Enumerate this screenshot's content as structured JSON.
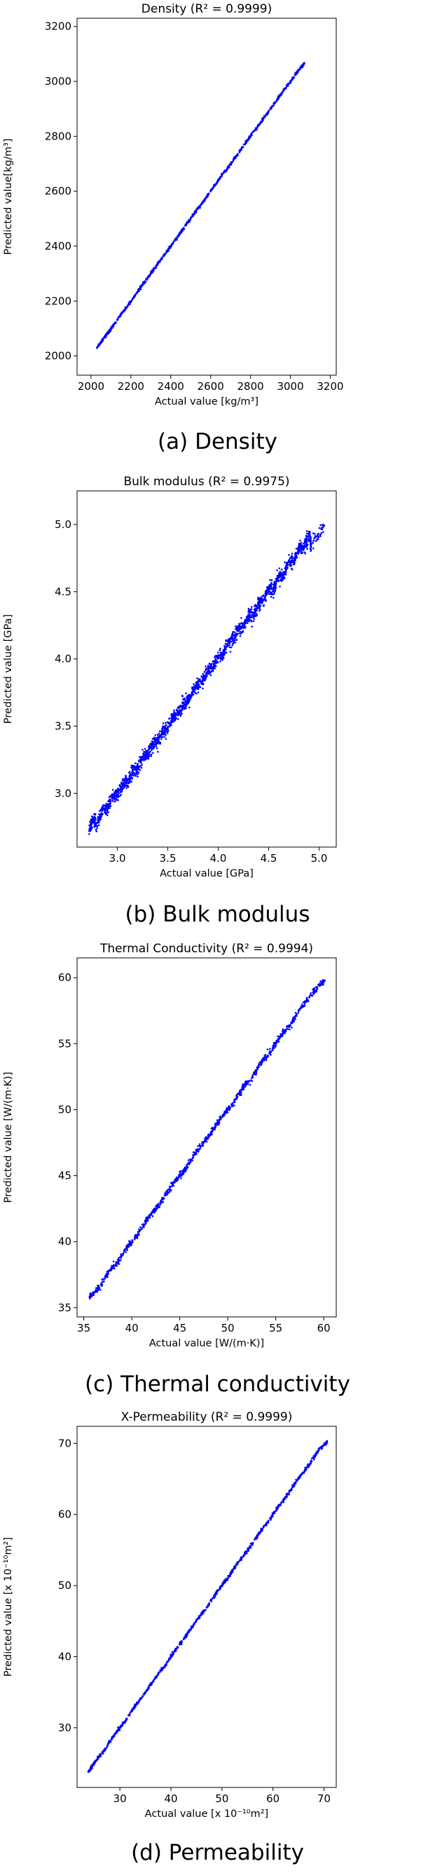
{
  "panels": [
    {
      "caption": "(a) Density",
      "chart_data": {
        "type": "scatter",
        "title": "Density (R² = 0.9999)",
        "xlabel": "Actual value [kg/m³]",
        "ylabel": "Predicted value[kg/m³]",
        "xlim": [
          1930,
          3230
        ],
        "ylim": [
          1930,
          3230
        ],
        "xticks": [
          2000,
          2200,
          2400,
          2600,
          2800,
          3000,
          3200
        ],
        "yticks": [
          2000,
          2200,
          2400,
          2600,
          2800,
          3000,
          3200
        ],
        "xtick_labels": [
          "2000",
          "2200",
          "2400",
          "2600",
          "2800",
          "3000",
          "3200"
        ],
        "ytick_labels": [
          "2000",
          "2200",
          "2400",
          "2600",
          "2800",
          "3000",
          "3200"
        ],
        "point_color": "#0000ff",
        "grid": false,
        "points": [
          [
            2030,
            2030
          ],
          [
            2060,
            2061
          ],
          [
            2100,
            2098
          ],
          [
            2150,
            2151
          ],
          [
            2200,
            2199
          ],
          [
            2250,
            2251
          ],
          [
            2300,
            2300
          ],
          [
            2350,
            2351
          ],
          [
            2400,
            2399
          ],
          [
            2450,
            2450
          ],
          [
            2500,
            2501
          ],
          [
            2550,
            2549
          ],
          [
            2600,
            2600
          ],
          [
            2650,
            2651
          ],
          [
            2700,
            2699
          ],
          [
            2750,
            2750
          ],
          [
            2800,
            2801
          ],
          [
            2850,
            2849
          ],
          [
            2900,
            2900
          ],
          [
            2950,
            2951
          ],
          [
            3000,
            2999
          ],
          [
            3040,
            3040
          ],
          [
            3070,
            3066
          ]
        ]
      }
    },
    {
      "caption": "(b) Bulk modulus",
      "chart_data": {
        "type": "scatter",
        "title": "Bulk modulus (R² = 0.9975)",
        "xlabel": "Actual value [GPa]",
        "ylabel": "Predicted value [GPa]",
        "xlim": [
          2.6,
          5.17
        ],
        "ylim": [
          2.6,
          5.25
        ],
        "xticks": [
          3.0,
          3.5,
          4.0,
          4.5,
          5.0
        ],
        "yticks": [
          3.0,
          3.5,
          4.0,
          4.5,
          5.0
        ],
        "xtick_labels": [
          "3.0",
          "3.5",
          "4.0",
          "4.5",
          "5.0"
        ],
        "ytick_labels": [
          "3.0",
          "3.5",
          "4.0",
          "4.5",
          "5.0"
        ],
        "point_color": "#0000ff",
        "grid": false,
        "points": [
          [
            2.72,
            2.72
          ],
          [
            2.75,
            2.8
          ],
          [
            2.8,
            2.78
          ],
          [
            2.85,
            2.87
          ],
          [
            2.9,
            2.88
          ],
          [
            2.95,
            2.97
          ],
          [
            3.0,
            2.99
          ],
          [
            3.05,
            3.06
          ],
          [
            3.1,
            3.08
          ],
          [
            3.15,
            3.17
          ],
          [
            3.2,
            3.18
          ],
          [
            3.25,
            3.27
          ],
          [
            3.3,
            3.28
          ],
          [
            3.35,
            3.37
          ],
          [
            3.4,
            3.39
          ],
          [
            3.45,
            3.46
          ],
          [
            3.5,
            3.49
          ],
          [
            3.55,
            3.56
          ],
          [
            3.6,
            3.59
          ],
          [
            3.65,
            3.67
          ],
          [
            3.7,
            3.68
          ],
          [
            3.75,
            3.76
          ],
          [
            3.8,
            3.81
          ],
          [
            3.85,
            3.84
          ],
          [
            3.9,
            3.92
          ],
          [
            3.95,
            3.94
          ],
          [
            4.0,
            4.02
          ],
          [
            4.05,
            4.03
          ],
          [
            4.1,
            4.12
          ],
          [
            4.15,
            4.14
          ],
          [
            4.2,
            4.22
          ],
          [
            4.25,
            4.23
          ],
          [
            4.3,
            4.33
          ],
          [
            4.35,
            4.32
          ],
          [
            4.4,
            4.42
          ],
          [
            4.45,
            4.44
          ],
          [
            4.5,
            4.53
          ],
          [
            4.55,
            4.52
          ],
          [
            4.6,
            4.62
          ],
          [
            4.65,
            4.63
          ],
          [
            4.7,
            4.73
          ],
          [
            4.75,
            4.72
          ],
          [
            4.8,
            4.83
          ],
          [
            4.85,
            4.82
          ],
          [
            4.9,
            4.93
          ],
          [
            4.92,
            4.85
          ],
          [
            5.05,
            4.99
          ]
        ]
      }
    },
    {
      "caption": "(c) Thermal conductivity",
      "chart_data": {
        "type": "scatter",
        "title": "Thermal Conductivity (R² = 0.9994)",
        "xlabel": "Actual value [W/(m·K)]",
        "ylabel": "Predicted value [W/(m·K)]",
        "xlim": [
          34.3,
          61.3
        ],
        "ylim": [
          34.3,
          61.5
        ],
        "xticks": [
          35,
          40,
          45,
          50,
          55,
          60
        ],
        "yticks": [
          35,
          40,
          45,
          50,
          55,
          60
        ],
        "xtick_labels": [
          "35",
          "40",
          "45",
          "50",
          "55",
          "60"
        ],
        "ytick_labels": [
          "35",
          "40",
          "45",
          "50",
          "55",
          "60"
        ],
        "point_color": "#0000ff",
        "grid": false,
        "points": [
          [
            35.6,
            35.8
          ],
          [
            36.5,
            36.4
          ],
          [
            37.5,
            37.6
          ],
          [
            38.5,
            38.4
          ],
          [
            39.5,
            39.6
          ],
          [
            40.5,
            40.4
          ],
          [
            41.5,
            41.6
          ],
          [
            42.5,
            42.5
          ],
          [
            43.5,
            43.5
          ],
          [
            44.5,
            44.6
          ],
          [
            45.5,
            45.4
          ],
          [
            46.5,
            46.6
          ],
          [
            47.5,
            47.5
          ],
          [
            48.5,
            48.5
          ],
          [
            49.5,
            49.6
          ],
          [
            50.5,
            50.4
          ],
          [
            51.5,
            51.6
          ],
          [
            52.5,
            52.4
          ],
          [
            53.5,
            53.6
          ],
          [
            54.5,
            54.4
          ],
          [
            55.5,
            55.6
          ],
          [
            56.5,
            56.4
          ],
          [
            57.5,
            57.6
          ],
          [
            59.0,
            59.0
          ],
          [
            60.1,
            59.8
          ]
        ]
      }
    },
    {
      "caption": "(d) Permeability",
      "chart_data": {
        "type": "scatter",
        "title": "X-Permeability (R² = 0.9999)",
        "xlabel": "Actual value [x 10⁻¹⁰m²]",
        "ylabel": "Predicted value [x 10⁻¹⁰m²]",
        "xlim": [
          21.6,
          72.4
        ],
        "ylim": [
          21.6,
          72.4
        ],
        "xticks": [
          30,
          40,
          50,
          60,
          70
        ],
        "yticks": [
          30,
          40,
          50,
          60,
          70
        ],
        "xtick_labels": [
          "30",
          "40",
          "50",
          "60",
          "70"
        ],
        "ytick_labels": [
          "30",
          "40",
          "50",
          "60",
          "70"
        ],
        "point_color": "#0000ff",
        "grid": false,
        "points": [
          [
            23.8,
            23.8
          ],
          [
            25,
            25.1
          ],
          [
            27,
            26.9
          ],
          [
            29,
            29.1
          ],
          [
            31,
            30.9
          ],
          [
            33,
            33.1
          ],
          [
            35,
            34.9
          ],
          [
            37,
            37.1
          ],
          [
            39,
            38.9
          ],
          [
            41,
            41.1
          ],
          [
            43,
            42.9
          ],
          [
            45,
            45.1
          ],
          [
            47,
            46.9
          ],
          [
            49,
            49.1
          ],
          [
            51,
            50.9
          ],
          [
            53,
            53.1
          ],
          [
            55,
            54.9
          ],
          [
            57,
            57.1
          ],
          [
            59,
            58.9
          ],
          [
            61,
            61.1
          ],
          [
            63,
            62.9
          ],
          [
            65,
            65.1
          ],
          [
            67,
            66.9
          ],
          [
            69,
            69.1
          ],
          [
            70.6,
            70.2
          ]
        ]
      }
    }
  ]
}
